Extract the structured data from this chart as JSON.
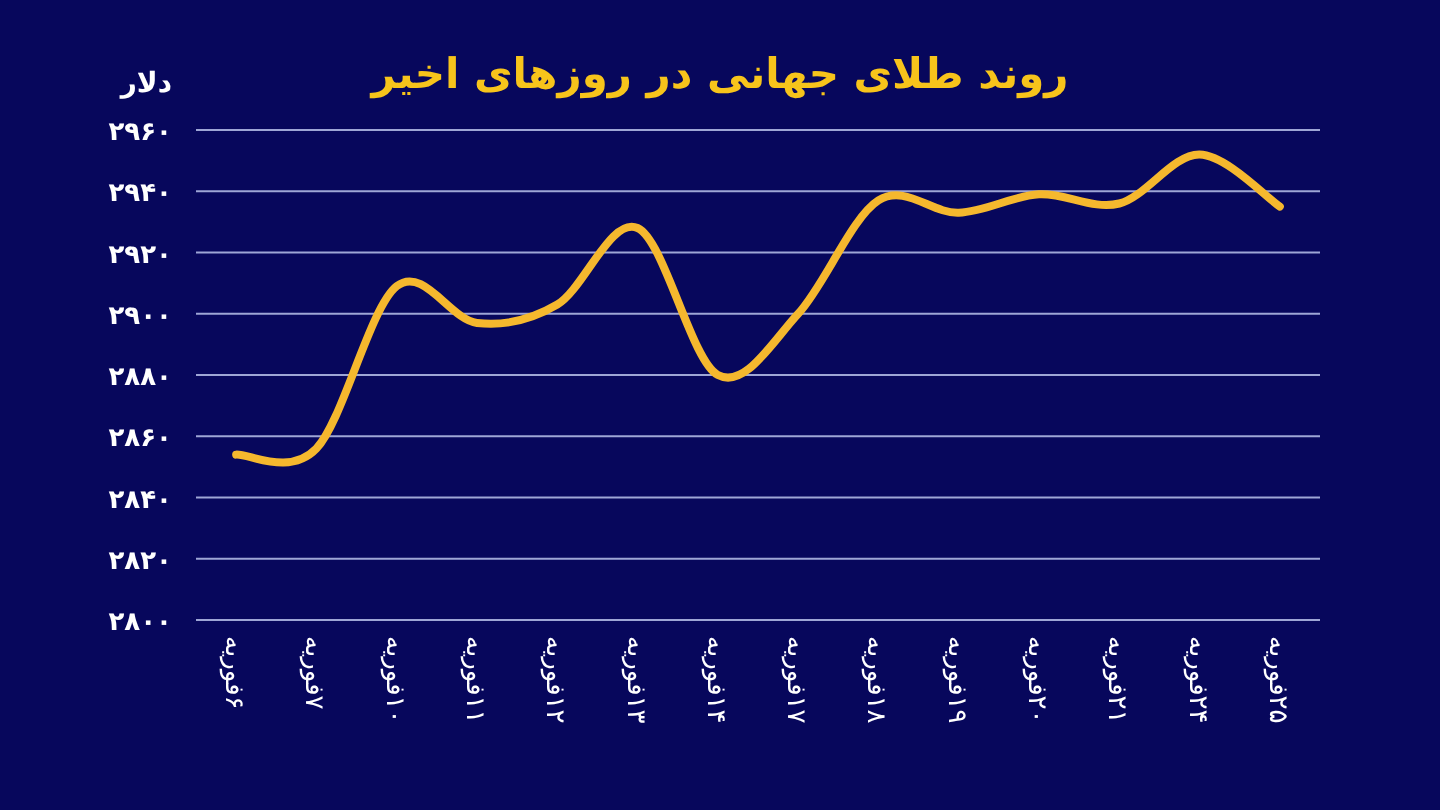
{
  "chart_data": {
    "type": "line",
    "title": "روند طلای جهانی در روزهای اخیر",
    "ylabel": "دلار",
    "categories": [
      "۶فوریه",
      "۷فوریه",
      "۱۰فوریه",
      "۱۱فوریه",
      "۱۲فوریه",
      "۱۳فوریه",
      "۱۴فوریه",
      "۱۷فوریه",
      "۱۸فوریه",
      "۱۹فوریه",
      "۲۰فوریه",
      "۲۱فوریه",
      "۲۴فوریه",
      "۲۵فوریه"
    ],
    "series": [
      {
        "color": "#f5b82e",
        "values": [
          2854,
          2856,
          2909,
          2897,
          2903,
          2928,
          2880,
          2900,
          2937,
          2933,
          2939,
          2936,
          2952,
          2935
        ]
      }
    ],
    "ylim": [
      2800,
      2960
    ],
    "yticks": [
      {
        "value": 2800,
        "label": "۲۸۰۰"
      },
      {
        "value": 2820,
        "label": "۲۸۲۰"
      },
      {
        "value": 2840,
        "label": "۲۸۴۰"
      },
      {
        "value": 2860,
        "label": "۲۸۶۰"
      },
      {
        "value": 2880,
        "label": "۲۸۸۰"
      },
      {
        "value": 2900,
        "label": "۲۹۰۰"
      },
      {
        "value": 2920,
        "label": "۲۹۲۰"
      },
      {
        "value": 2940,
        "label": "۲۹۴۰"
      },
      {
        "value": 2960,
        "label": "۲۹۶۰"
      }
    ],
    "grid": "y"
  }
}
